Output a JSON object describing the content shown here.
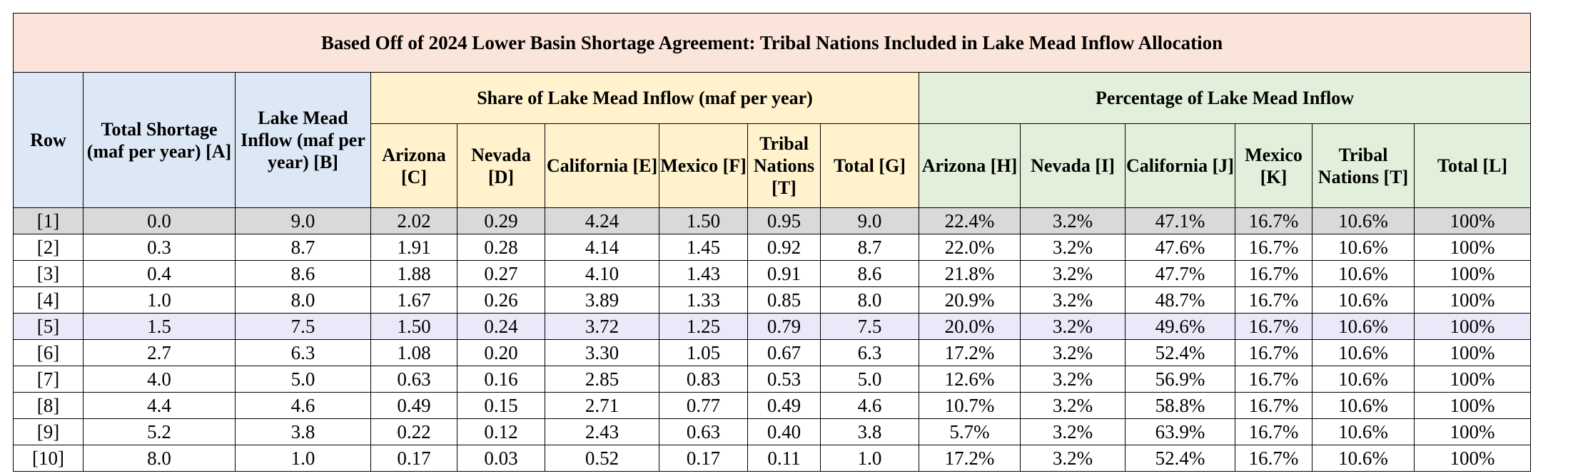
{
  "title": "Based Off of 2024 Lower Basin Shortage Agreement: Tribal Nations Included in Lake Mead Inflow Allocation",
  "headers": {
    "row": "Row",
    "total_shortage": "Total Shortage (maf per year) [A]",
    "lake_mead_inflow": "Lake Mead Inflow (maf per year) [B]",
    "share_group": "Share of Lake Mead Inflow (maf per year)",
    "percentage_group": "Percentage of Lake Mead Inflow",
    "share_cols": [
      "Arizona [C]",
      "Nevada [D]",
      "California [E]",
      "Mexico [F]",
      "Tribal Nations [T]",
      "Total [G]"
    ],
    "pct_cols": [
      "Arizona [H]",
      "Nevada [I]",
      "California [J]",
      "Mexico [K]",
      "Tribal Nations [T]",
      "Total [L]"
    ]
  },
  "rows": [
    [
      "[1]",
      "0.0",
      "9.0",
      "2.02",
      "0.29",
      "4.24",
      "1.50",
      "0.95",
      "9.0",
      "22.4%",
      "3.2%",
      "47.1%",
      "16.7%",
      "10.6%",
      "100%"
    ],
    [
      "[2]",
      "0.3",
      "8.7",
      "1.91",
      "0.28",
      "4.14",
      "1.45",
      "0.92",
      "8.7",
      "22.0%",
      "3.2%",
      "47.6%",
      "16.7%",
      "10.6%",
      "100%"
    ],
    [
      "[3]",
      "0.4",
      "8.6",
      "1.88",
      "0.27",
      "4.10",
      "1.43",
      "0.91",
      "8.6",
      "21.8%",
      "3.2%",
      "47.7%",
      "16.7%",
      "10.6%",
      "100%"
    ],
    [
      "[4]",
      "1.0",
      "8.0",
      "1.67",
      "0.26",
      "3.89",
      "1.33",
      "0.85",
      "8.0",
      "20.9%",
      "3.2%",
      "48.7%",
      "16.7%",
      "10.6%",
      "100%"
    ],
    [
      "[5]",
      "1.5",
      "7.5",
      "1.50",
      "0.24",
      "3.72",
      "1.25",
      "0.79",
      "7.5",
      "20.0%",
      "3.2%",
      "49.6%",
      "16.7%",
      "10.6%",
      "100%"
    ],
    [
      "[6]",
      "2.7",
      "6.3",
      "1.08",
      "0.20",
      "3.30",
      "1.05",
      "0.67",
      "6.3",
      "17.2%",
      "3.2%",
      "52.4%",
      "16.7%",
      "10.6%",
      "100%"
    ],
    [
      "[7]",
      "4.0",
      "5.0",
      "0.63",
      "0.16",
      "2.85",
      "0.83",
      "0.53",
      "5.0",
      "12.6%",
      "3.2%",
      "56.9%",
      "16.7%",
      "10.6%",
      "100%"
    ],
    [
      "[8]",
      "4.4",
      "4.6",
      "0.49",
      "0.15",
      "2.71",
      "0.77",
      "0.49",
      "4.6",
      "10.7%",
      "3.2%",
      "58.8%",
      "16.7%",
      "10.6%",
      "100%"
    ],
    [
      "[9]",
      "5.2",
      "3.8",
      "0.22",
      "0.12",
      "2.43",
      "0.63",
      "0.40",
      "3.8",
      "5.7%",
      "3.2%",
      "63.9%",
      "16.7%",
      "10.6%",
      "100%"
    ],
    [
      "[10]",
      "8.0",
      "1.0",
      "0.17",
      "0.03",
      "0.52",
      "0.17",
      "0.11",
      "1.0",
      "17.2%",
      "3.2%",
      "52.4%",
      "16.7%",
      "10.6%",
      "100%"
    ]
  ],
  "row_highlights": {
    "0": "gray",
    "4": "lav"
  }
}
